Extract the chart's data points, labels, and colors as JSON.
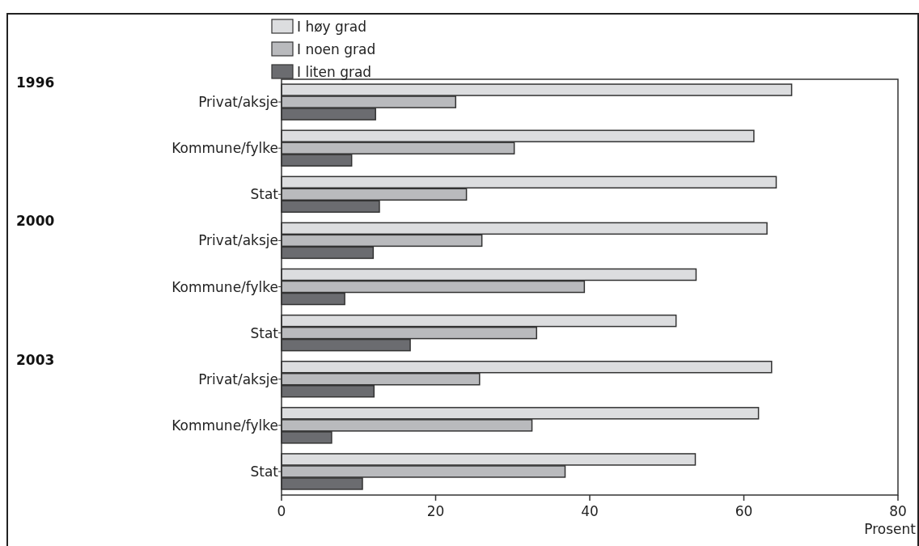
{
  "chart_data": {
    "type": "bar",
    "orientation": "horizontal",
    "xlabel": "Prosent",
    "categories": [
      "Privat/aksje",
      "Kommune/fylke",
      "Stat",
      "Privat/aksje",
      "Kommune/fylke",
      "Stat",
      "Privat/aksje",
      "Kommune/fylke",
      "Stat"
    ],
    "annotations": [
      "1996",
      "2000",
      "2003"
    ],
    "series": [
      {
        "name": "I høy grad",
        "color": "#dcdddf",
        "values": [
          66.2,
          61.3,
          64.2,
          63.0,
          53.8,
          51.2,
          63.6,
          61.9,
          53.7
        ]
      },
      {
        "name": "I noen grad",
        "color": "#b9babd",
        "values": [
          22.6,
          30.2,
          24.0,
          26.0,
          39.3,
          33.1,
          25.7,
          32.5,
          36.8
        ]
      },
      {
        "name": "I liten grad",
        "color": "#6b6c70",
        "values": [
          12.2,
          9.1,
          12.7,
          11.9,
          8.2,
          16.7,
          12.0,
          6.5,
          10.5
        ]
      }
    ],
    "xlim": [
      0,
      80
    ],
    "xticks": [
      0,
      20,
      40,
      60,
      80
    ],
    "grid": false,
    "legend": "top left"
  }
}
